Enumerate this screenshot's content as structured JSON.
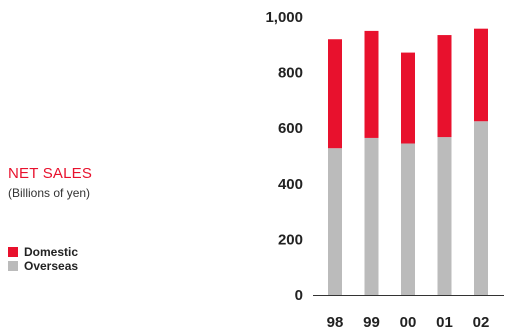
{
  "chart_data": {
    "type": "bar",
    "stacked": true,
    "title": "NET SALES",
    "subtitle": "(Billions of yen)",
    "categories": [
      "98",
      "99",
      "00",
      "01",
      "02"
    ],
    "series": [
      {
        "name": "Overseas",
        "color": "#bbbbbb",
        "values": [
          528,
          565,
          545,
          568,
          625
        ]
      },
      {
        "name": "Domestic",
        "color": "#e8112d",
        "values": [
          392,
          385,
          327,
          367,
          333
        ]
      }
    ],
    "ylim": [
      0,
      1000
    ],
    "yticks": [
      "0",
      "200",
      "400",
      "600",
      "800",
      "1,000"
    ],
    "legend": [
      {
        "label": "Domestic",
        "color": "#e8112d"
      },
      {
        "label": "Overseas",
        "color": "#bbbbbb"
      }
    ],
    "legend_position": "bottom-left",
    "grid": false
  }
}
